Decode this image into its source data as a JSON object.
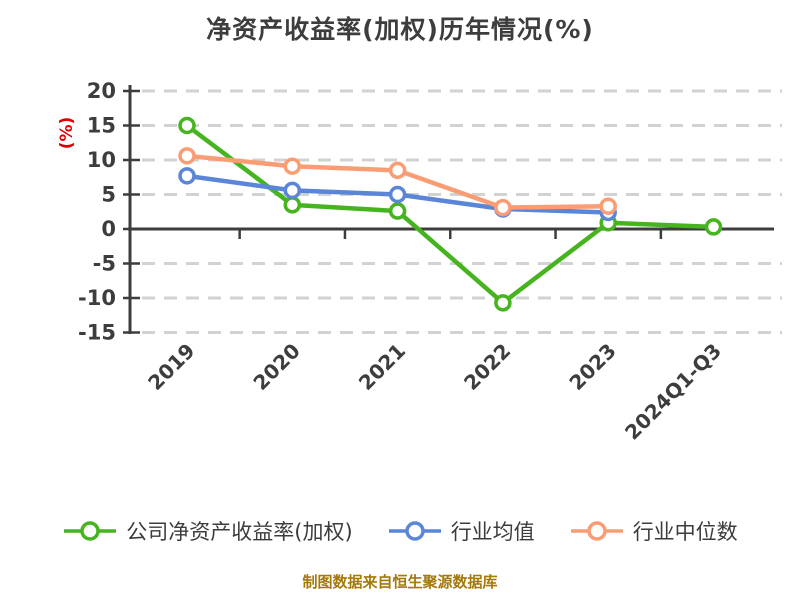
{
  "title": "净资产收益率(加权)历年情况(%)",
  "footer": "制图数据来自恒生聚源数据库",
  "chart_data": {
    "type": "line",
    "title": "净资产收益率(加权)历年情况(%)",
    "ylabel": "(%)",
    "xlabel": "",
    "categories": [
      "2019",
      "2020",
      "2021",
      "2022",
      "2023",
      "2024Q1-Q3"
    ],
    "series": [
      {
        "name": "公司净资产收益率(加权)",
        "color": "#45b41e",
        "values": [
          15.0,
          3.5,
          2.6,
          -10.7,
          0.9,
          0.3
        ]
      },
      {
        "name": "行业均值",
        "color": "#5b86d8",
        "values": [
          7.7,
          5.6,
          5.0,
          2.9,
          2.4,
          null
        ]
      },
      {
        "name": "行业中位数",
        "color": "#fa9c74",
        "values": [
          10.6,
          9.1,
          8.5,
          3.1,
          3.3,
          null
        ]
      }
    ],
    "ylim": [
      -15,
      20
    ],
    "yticks": [
      20,
      15,
      10,
      5,
      0,
      -5,
      -10,
      -15
    ],
    "grid": "horizontal-dashed",
    "legend_position": "bottom",
    "marker": "circle-white-fill",
    "x_tick_rotation": 45
  },
  "colors": {
    "axis_text": "#3d3d3d",
    "axis_line": "#3d3d3d",
    "gridline": "#d2d2d2",
    "ylabel_red": "#dd0000",
    "footer_gold": "#a5790a",
    "background": "#ffffff"
  }
}
